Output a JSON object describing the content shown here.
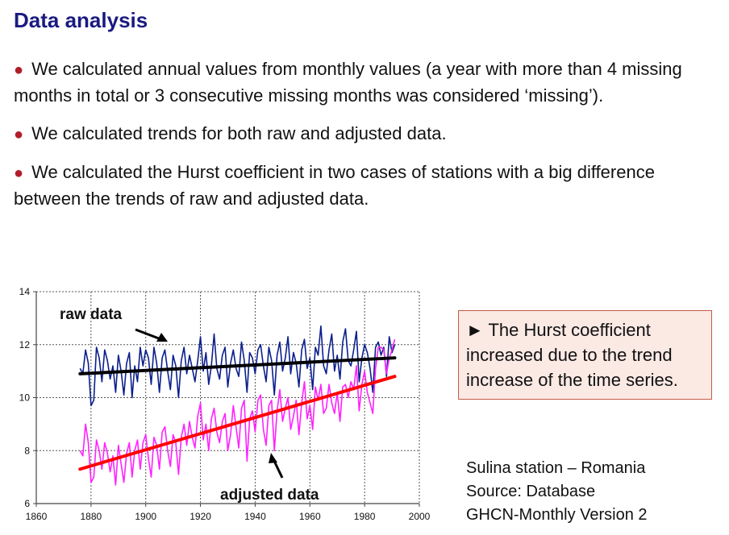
{
  "slide": {
    "title": "Data analysis",
    "bullets": [
      "We calculated annual values from monthly values (a year with more than 4 missing months in total or 3 consecutive missing months was considered ‘missing’).",
      "We calculated trends for both raw and adjusted data.",
      "We calculated the Hurst coefficient in two cases of stations with a big difference between the trends of raw and adjusted data."
    ],
    "bullet_symbol": "●",
    "callout": "► The Hurst coefficient increased due to the trend increase of the time series.",
    "source_lines": [
      "Sulina station – Romania",
      "Source: Database",
      "GHCN-Monthly Version 2"
    ]
  },
  "colors": {
    "title": "#1a1a80",
    "bullet_dot": "#b01e2a",
    "raw_series": "#0b1f8c",
    "adjusted_series": "#ff22ff",
    "raw_trend": "#000000",
    "adjusted_trend": "#ff0000",
    "callout_bg": "#fbe9e4",
    "callout_border": "#c45a4a"
  },
  "chart_data": {
    "type": "line",
    "xlim": [
      1860,
      2000
    ],
    "ylim": [
      6,
      14
    ],
    "x_ticks": [
      1860,
      1880,
      1900,
      1920,
      1940,
      1960,
      1980,
      2000
    ],
    "y_ticks": [
      6,
      8,
      10,
      12,
      14
    ],
    "grid": true,
    "annotations": [
      "raw data",
      "adjusted data"
    ],
    "series": [
      {
        "key": "raw",
        "x_start": 1876,
        "values": [
          11.1,
          10.9,
          11.8,
          11.3,
          9.7,
          9.9,
          11.9,
          11.5,
          10.6,
          11.8,
          11.4,
          10.7,
          11.2,
          10.2,
          11.6,
          11.0,
          10.1,
          11.3,
          11.7,
          10.0,
          11.2,
          10.6,
          11.9,
          11.2,
          11.8,
          11.5,
          10.5,
          11.9,
          11.3,
          10.2,
          11.5,
          11.8,
          11.0,
          10.3,
          11.6,
          11.2,
          10.0,
          11.4,
          11.9,
          10.9,
          11.6,
          11.1,
          10.6,
          11.4,
          12.3,
          11.0,
          11.7,
          10.5,
          11.2,
          12.4,
          11.1,
          10.7,
          11.6,
          11.9,
          10.4,
          11.3,
          11.8,
          11.1,
          10.8,
          12.1,
          11.4,
          10.2,
          11.7,
          11.5,
          10.9,
          11.8,
          12.0,
          11.2,
          10.6,
          11.9,
          11.4,
          10.1,
          11.6,
          12.1,
          11.0,
          11.5,
          12.3,
          10.9,
          11.7,
          11.3,
          10.4,
          11.8,
          12.2,
          11.1,
          11.5,
          10.3,
          11.9,
          11.6,
          12.7,
          11.2,
          10.9,
          11.8,
          12.4,
          11.0,
          11.6,
          10.7,
          12.1,
          12.6,
          11.4,
          11.2,
          11.8,
          12.5,
          10.6,
          11.5,
          12.0,
          11.7,
          11.1,
          10.2,
          11.9,
          12.1,
          11.6,
          11.9,
          10.8,
          12.3,
          11.7,
          12.0
        ]
      },
      {
        "key": "adjusted",
        "x_start": 1876,
        "values": [
          8.0,
          7.8,
          9.0,
          8.3,
          6.8,
          7.0,
          8.4,
          8.0,
          7.3,
          8.3,
          7.9,
          7.2,
          7.8,
          6.7,
          8.2,
          7.5,
          6.8,
          7.9,
          8.3,
          7.0,
          8.0,
          8.4,
          7.3,
          8.3,
          8.6,
          7.7,
          7.0,
          8.5,
          8.2,
          7.3,
          8.7,
          8.9,
          8.0,
          7.4,
          8.6,
          8.3,
          7.1,
          8.5,
          9.0,
          8.2,
          9.1,
          8.5,
          8.1,
          9.3,
          9.8,
          8.4,
          9.0,
          8.0,
          9.2,
          9.6,
          8.7,
          8.3,
          9.1,
          9.4,
          8.0,
          8.6,
          9.7,
          8.9,
          8.1,
          9.6,
          9.9,
          7.6,
          9.2,
          9.5,
          8.7,
          9.9,
          10.1,
          8.8,
          8.2,
          9.7,
          9.9,
          8.0,
          9.5,
          10.3,
          9.1,
          9.6,
          10.0,
          8.8,
          9.3,
          9.9,
          8.6,
          9.8,
          10.6,
          9.2,
          9.7,
          8.8,
          10.4,
          9.9,
          10.5,
          9.4,
          9.6,
          10.5,
          9.8,
          9.4,
          10.2,
          9.1,
          10.4,
          10.5,
          10.0,
          10.6,
          10.3,
          11.2,
          9.5,
          10.5,
          11.0,
          10.2,
          9.8,
          9.4,
          11.1,
          11.9,
          11.9,
          11.8,
          10.9,
          11.5,
          11.8,
          12.2
        ]
      }
    ],
    "trends": [
      {
        "key": "raw",
        "x": [
          1876,
          1991
        ],
        "y": [
          10.9,
          11.5
        ]
      },
      {
        "key": "adjusted",
        "x": [
          1876,
          1991
        ],
        "y": [
          7.3,
          10.8
        ]
      }
    ]
  }
}
